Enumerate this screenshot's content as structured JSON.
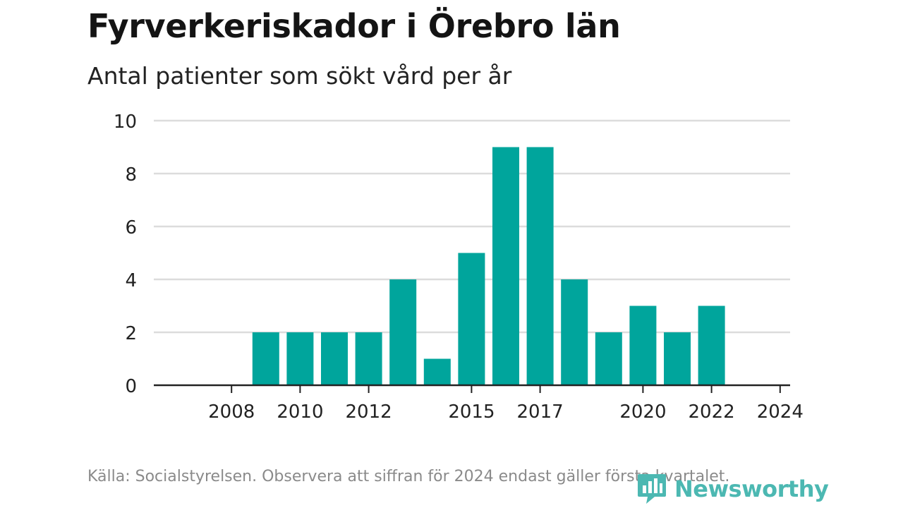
{
  "title": "Fyrverkeriskador i Örebro län",
  "subtitle": "Antal patienter som sökt vård per år",
  "footnote": "Källa: Socialstyrelsen. Observera att siffran för 2024 endast gäller första kvartalet.",
  "brand": {
    "name": "Newsworthy",
    "icon": "newsworthy-logo-icon",
    "color": "#4cb8b2"
  },
  "colors": {
    "bar": "#00a59c",
    "grid": "#dcdcdc",
    "axis": "#222222"
  },
  "chart_data": {
    "type": "bar",
    "title": "Fyrverkeriskador i Örebro län",
    "subtitle": "Antal patienter som sökt vård per år",
    "xlabel": "",
    "ylabel": "",
    "x": [
      2007,
      2008,
      2009,
      2010,
      2011,
      2012,
      2013,
      2014,
      2015,
      2016,
      2017,
      2018,
      2019,
      2020,
      2021,
      2022,
      2023,
      2024
    ],
    "values": [
      0,
      0,
      2,
      2,
      2,
      2,
      4,
      1,
      5,
      9,
      9,
      4,
      2,
      3,
      2,
      3,
      0,
      0
    ],
    "x_ticks": [
      "2008",
      "2010",
      "2012",
      "2015",
      "2017",
      "2020",
      "2022",
      "2024"
    ],
    "y_ticks": [
      "0",
      "2",
      "4",
      "6",
      "8",
      "10"
    ],
    "ylim": [
      0,
      10
    ],
    "grid": true,
    "legend": "none"
  }
}
